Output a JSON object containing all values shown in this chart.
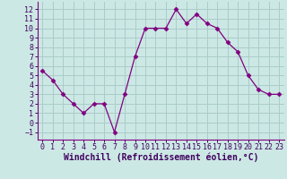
{
  "x": [
    0,
    1,
    2,
    3,
    4,
    5,
    6,
    7,
    8,
    9,
    10,
    11,
    12,
    13,
    14,
    15,
    16,
    17,
    18,
    19,
    20,
    21,
    22,
    23
  ],
  "y": [
    5.5,
    4.5,
    3.0,
    2.0,
    1.0,
    2.0,
    2.0,
    -1.0,
    3.0,
    7.0,
    10.0,
    10.0,
    10.0,
    12.0,
    10.5,
    11.5,
    10.5,
    10.0,
    8.5,
    7.5,
    5.0,
    3.5,
    3.0,
    3.0
  ],
  "line_color": "#800080",
  "marker": "D",
  "marker_size": 2.5,
  "bg_color": "#cce8e4",
  "grid_color": "#aaccca",
  "xlabel": "Windchill (Refroidissement éolien,°C)",
  "xlabel_fontsize": 7,
  "tick_fontsize": 6,
  "xlim": [
    -0.5,
    23.5
  ],
  "ylim": [
    -1.8,
    12.8
  ],
  "yticks": [
    -1,
    0,
    1,
    2,
    3,
    4,
    5,
    6,
    7,
    8,
    9,
    10,
    11,
    12
  ],
  "xticks": [
    0,
    1,
    2,
    3,
    4,
    5,
    6,
    7,
    8,
    9,
    10,
    11,
    12,
    13,
    14,
    15,
    16,
    17,
    18,
    19,
    20,
    21,
    22,
    23
  ],
  "spine_color": "#800080",
  "tick_color": "#400060",
  "label_color": "#400060"
}
